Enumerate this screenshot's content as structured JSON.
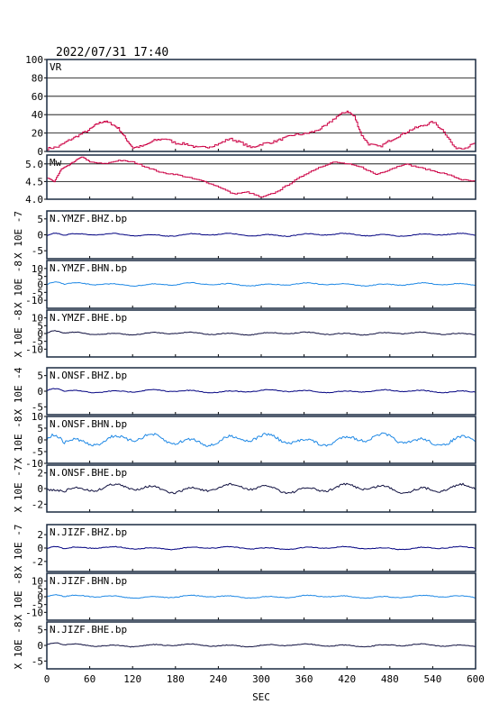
{
  "chart_data": {
    "type": "line",
    "title": "2022/07/31 17:40",
    "xlabel": "SEC",
    "xlim": [
      0,
      600
    ],
    "xticks": [
      0,
      60,
      120,
      180,
      240,
      300,
      360,
      420,
      480,
      540,
      600
    ],
    "colors": {
      "magenta": "#cc0044",
      "navy": "#000080",
      "sky": "#1e88e5",
      "dark": "#101040"
    },
    "panels": [
      {
        "label": "VR",
        "ylim": [
          0,
          100
        ],
        "yticks": [
          0,
          20,
          40,
          60,
          80,
          100
        ],
        "grid": true,
        "color": "#cc0044",
        "x": [
          0,
          15,
          30,
          45,
          60,
          70,
          80,
          90,
          100,
          110,
          120,
          135,
          150,
          165,
          180,
          195,
          210,
          225,
          240,
          255,
          270,
          285,
          300,
          315,
          330,
          345,
          360,
          375,
          390,
          405,
          420,
          430,
          440,
          450,
          465,
          480,
          495,
          510,
          525,
          540,
          555,
          570,
          585,
          600
        ],
        "y": [
          3,
          5,
          12,
          18,
          24,
          30,
          33,
          30,
          25,
          14,
          4,
          6,
          12,
          14,
          9,
          8,
          4,
          5,
          8,
          14,
          10,
          4,
          8,
          10,
          14,
          18,
          19,
          22,
          28,
          38,
          44,
          38,
          18,
          8,
          5,
          12,
          18,
          24,
          28,
          32,
          22,
          4,
          4,
          9
        ]
      },
      {
        "label": "Mw",
        "ylim": [
          4.0,
          5.25
        ],
        "yticks": [
          4.0,
          4.5,
          5.0
        ],
        "yticklabels": [
          "4.0",
          "4.5",
          "5.0"
        ],
        "grid": true,
        "color": "#cc0044",
        "x": [
          0,
          10,
          20,
          30,
          40,
          50,
          60,
          80,
          100,
          120,
          140,
          160,
          180,
          200,
          220,
          240,
          260,
          280,
          300,
          320,
          340,
          360,
          380,
          400,
          420,
          440,
          460,
          480,
          500,
          520,
          540,
          560,
          580,
          600
        ],
        "y": [
          4.6,
          4.5,
          4.85,
          4.95,
          5.1,
          5.2,
          5.05,
          5.0,
          5.1,
          5.05,
          4.9,
          4.75,
          4.7,
          4.6,
          4.5,
          4.35,
          4.15,
          4.2,
          4.05,
          4.2,
          4.45,
          4.7,
          4.9,
          5.05,
          5.0,
          4.9,
          4.7,
          4.85,
          5.0,
          4.9,
          4.8,
          4.7,
          4.55,
          4.5
        ]
      },
      {
        "label": "N.YMZF.BHZ.bp",
        "ylim": [
          -7.5,
          7.5
        ],
        "yticks": [
          -5,
          0,
          5
        ],
        "yticklabels": [
          "-5",
          "0",
          "5"
        ],
        "unit": "X 10E -7",
        "color": "#000080"
      },
      {
        "label": "N.YMZF.BHN.bp",
        "ylim": [
          -15,
          15
        ],
        "yticks": [
          -10,
          -5,
          0,
          5,
          10
        ],
        "yticklabels": [
          "-10",
          "-5",
          "0",
          "5",
          "10"
        ],
        "unit": "X 10E -8",
        "color": "#1e88e5"
      },
      {
        "label": "N.YMZF.BHE.bp",
        "ylim": [
          -15,
          15
        ],
        "yticks": [
          -10,
          -5,
          0,
          5,
          10
        ],
        "yticklabels": [
          "-10",
          "-5",
          "0",
          "5",
          "10"
        ],
        "unit": "X 10E -8",
        "color": "#101040"
      },
      {
        "label": "N.ONSF.BHZ.bp",
        "ylim": [
          -7.5,
          7.5
        ],
        "yticks": [
          -5,
          0,
          5
        ],
        "yticklabels": [
          "-5",
          "0",
          "5"
        ],
        "unit": "X 10E -4",
        "color": "#000080"
      },
      {
        "label": "N.ONSF.BHN.bp",
        "ylim": [
          -10,
          10
        ],
        "yticks": [
          -10,
          -5,
          0,
          5,
          10
        ],
        "yticklabels": [
          "-10",
          "-5",
          "0",
          "5",
          "10"
        ],
        "unit": "X 10E -8",
        "color": "#1e88e5"
      },
      {
        "label": "N.ONSF.BHE.bp",
        "ylim": [
          -3,
          3
        ],
        "yticks": [
          -2,
          0,
          2
        ],
        "yticklabels": [
          "-2",
          "0",
          "2"
        ],
        "unit": "X 10E -7",
        "color": "#101040"
      },
      {
        "label": "N.JIZF.BHZ.bp",
        "ylim": [
          -3.5,
          3.5
        ],
        "yticks": [
          -2,
          0,
          2
        ],
        "yticklabels": [
          "-2",
          "0",
          "2"
        ],
        "unit": "X 10E -7",
        "color": "#000080"
      },
      {
        "label": "N.JIZF.BHN.bp",
        "ylim": [
          -15,
          15
        ],
        "yticks": [
          -10,
          -5,
          0,
          5,
          10
        ],
        "yticklabels": [
          "-10",
          "-5",
          "0",
          "5",
          "10"
        ],
        "unit": "X 10E -8",
        "color": "#1e88e5"
      },
      {
        "label": "N.JIZF.BHE.bp",
        "ylim": [
          -7.5,
          7.5
        ],
        "yticks": [
          -5,
          0,
          5
        ],
        "yticklabels": [
          "-5",
          "0",
          "5"
        ],
        "unit": "X 10E -8",
        "color": "#101040"
      }
    ]
  }
}
